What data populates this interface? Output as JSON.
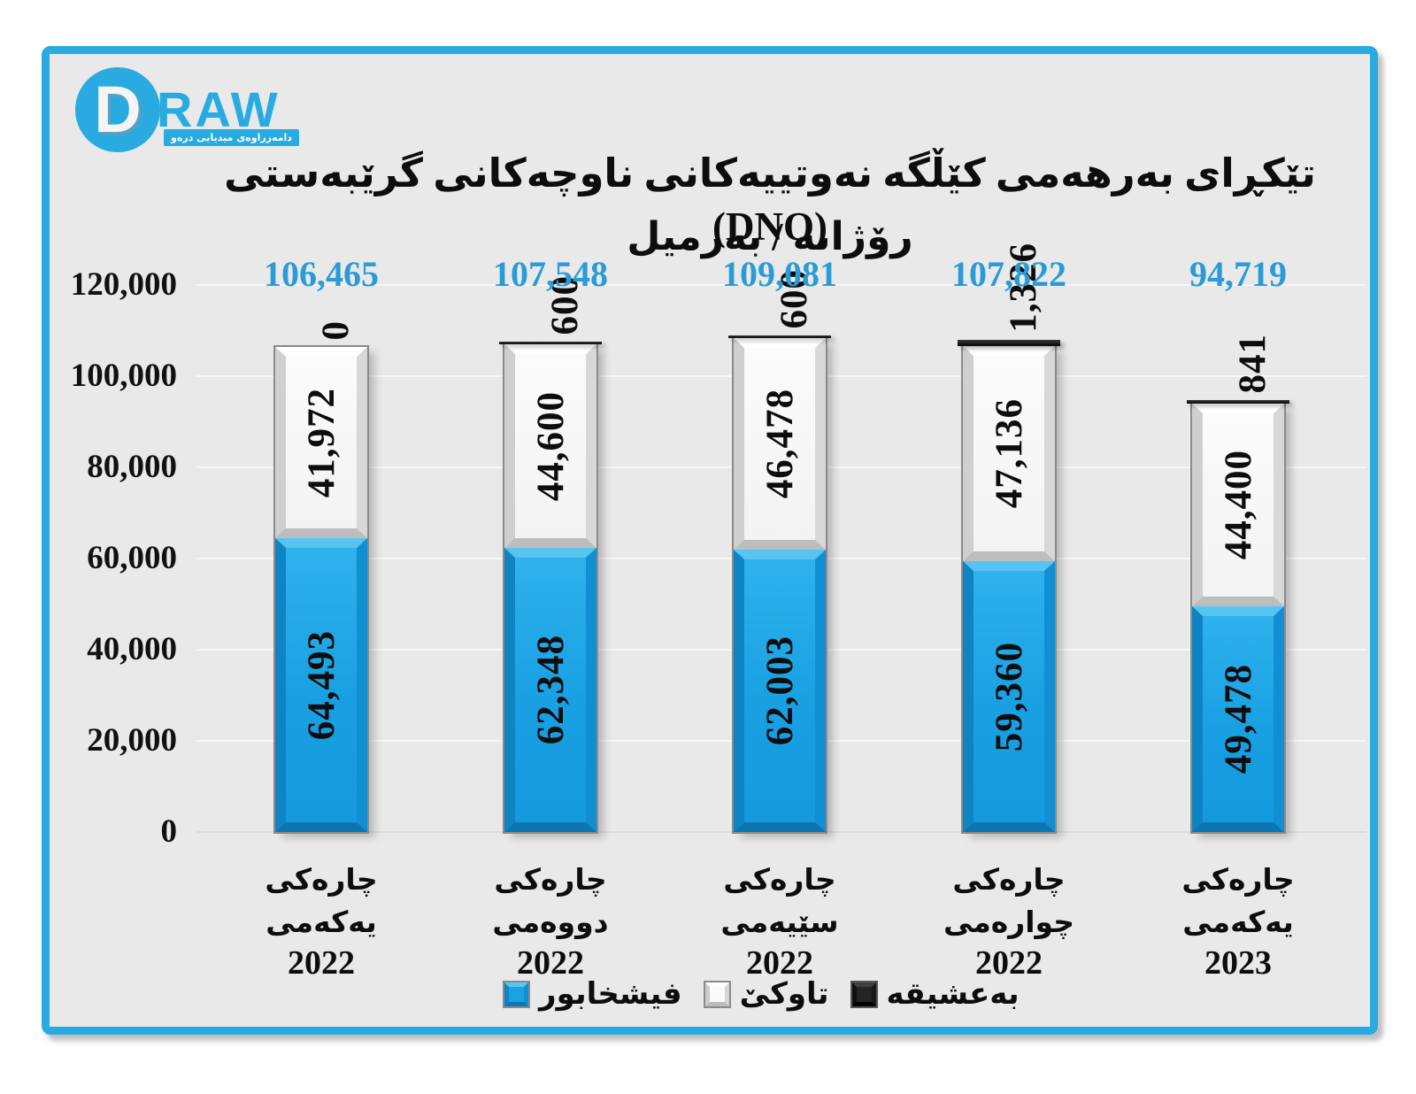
{
  "logo": {
    "d_letter": "D",
    "raw_text": "RAW",
    "banner_text": "دامەزراوەی میدیایی درەو",
    "accent_color": "#29abe2"
  },
  "title": {
    "line1": "تێکڕای بەرهەمی کێڵگە نەوتییەکانی ناوچەکانی گرێبەستی (DNO)",
    "line2": "رۆژانە / بەرمیل"
  },
  "chart_data": {
    "type": "bar",
    "stacked": true,
    "grid": true,
    "legend_position": "bottom",
    "ylim": [
      0,
      120000
    ],
    "yticks": [
      "0",
      "20,000",
      "40,000",
      "60,000",
      "80,000",
      "100,000",
      "120,000"
    ],
    "categories": [
      {
        "name": "چارەکی یەکەمی",
        "year": "2022"
      },
      {
        "name": "چارەکی دووەمی",
        "year": "2022"
      },
      {
        "name": "چارەکی سێیەمی",
        "year": "2022"
      },
      {
        "name": "چارەکی چوارەمی",
        "year": "2022"
      },
      {
        "name": "چارەکی یەکەمی",
        "year": "2023"
      }
    ],
    "series": [
      {
        "name": "فیشخابور",
        "color": "#1aa3e3",
        "values": [
          64493,
          62348,
          62003,
          59360,
          49478
        ],
        "labels": [
          "64,493",
          "62,348",
          "62,003",
          "59,360",
          "49,478"
        ]
      },
      {
        "name": "تاوکێ",
        "color": "#f5f5f5",
        "values": [
          41972,
          44600,
          46478,
          47136,
          44400
        ],
        "labels": [
          "41,972",
          "44,600",
          "46,478",
          "47,136",
          "44,400"
        ]
      },
      {
        "name": "بەعشیقە",
        "color": "#1a1a1a",
        "values": [
          0,
          600,
          600,
          1326,
          841
        ],
        "labels": [
          "0",
          "600",
          "600",
          "1,326",
          "841"
        ]
      }
    ],
    "totals": {
      "values": [
        106465,
        107548,
        109081,
        107822,
        94719
      ],
      "labels": [
        "106,465",
        "107,548",
        "109,081",
        "107,822",
        "94,719"
      ],
      "color": "#2b9bd7"
    }
  },
  "legend": {
    "items": [
      {
        "label": "فیشخابور",
        "swatch": "blue"
      },
      {
        "label": "تاوکێ",
        "swatch": "white"
      },
      {
        "label": "بەعشیقە",
        "swatch": "black"
      }
    ]
  },
  "colors": {
    "frame_border": "#29abe2",
    "background": "#e9e9e9",
    "bar_blue": "#1aa3e3",
    "bar_white": "#f5f5f5",
    "bar_black": "#1a1a1a",
    "totals_text": "#2b9bd7",
    "value_text": "#0d0d0d"
  }
}
